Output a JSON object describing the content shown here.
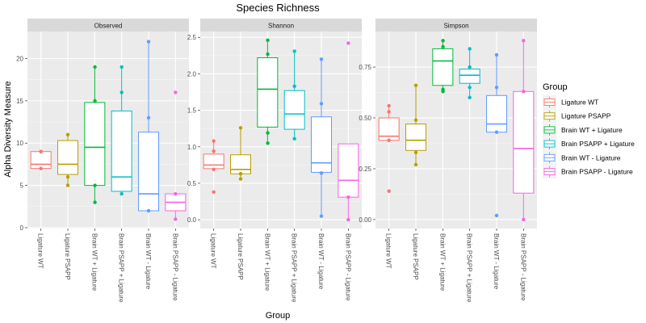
{
  "chart_data": {
    "type": "box",
    "title": "Species Richness",
    "xlabel": "Group",
    "ylabel": "Alpha Diversity Measure",
    "legend": {
      "title": "Group",
      "placement": "right",
      "entries": [
        "Ligature WT",
        "Ligature PSAPP",
        "Brain WT + Ligature",
        "Brain PSAPP + Ligature",
        "Brain WT - Ligature",
        "Brain PSAPP - Ligature"
      ]
    },
    "groups": [
      "Ligature WT",
      "Ligature PSAPP",
      "Brain WT + Ligature",
      "Brain PSAPP + Ligature",
      "Brain WT - Ligature",
      "Brain PSAPP - Ligature"
    ],
    "colors": [
      "#f8766d",
      "#b79f00",
      "#00ba38",
      "#00bfc4",
      "#619cff",
      "#f564e3"
    ],
    "grid": true,
    "panels": [
      {
        "label": "Observed",
        "ylim": [
          -0.1,
          23.2
        ],
        "yticks": [
          0,
          5,
          10,
          15,
          20
        ],
        "ytick_labels": [
          "0",
          "5",
          "10",
          "15",
          "20"
        ],
        "boxes": [
          {
            "min": 7,
            "q1": 7,
            "median": 7.5,
            "q3": 9,
            "max": 9,
            "points": [
              7,
              9,
              9
            ]
          },
          {
            "min": 5,
            "q1": 6.3,
            "median": 7.5,
            "q3": 10.3,
            "max": 11,
            "points": [
              5,
              6,
              11
            ]
          },
          {
            "min": 3,
            "q1": 5,
            "median": 9.5,
            "q3": 14.8,
            "max": 19,
            "points": [
              3,
              5,
              15,
              19
            ]
          },
          {
            "min": 4,
            "q1": 4.3,
            "median": 6,
            "q3": 13.8,
            "max": 19,
            "points": [
              4,
              16,
              19
            ]
          },
          {
            "min": 2,
            "q1": 2,
            "median": 4,
            "q3": 11.3,
            "max": 22,
            "points": [
              2,
              13,
              22
            ]
          },
          {
            "min": 1,
            "q1": 2,
            "median": 3,
            "q3": 4,
            "max": 4,
            "points": [
              1,
              4,
              16
            ]
          }
        ]
      },
      {
        "label": "Shannon",
        "ylim": [
          -0.12,
          2.58
        ],
        "yticks": [
          0,
          0.5,
          1.0,
          1.5,
          2.0,
          2.5
        ],
        "ytick_labels": [
          "0.0",
          "0.5",
          "1.0",
          "1.5",
          "2.0",
          "2.5"
        ],
        "boxes": [
          {
            "min": 0.69,
            "q1": 0.7,
            "median": 0.75,
            "q3": 0.9,
            "max": 1.08,
            "points": [
              0.38,
              0.69,
              0.94,
              1.08
            ]
          },
          {
            "min": 0.56,
            "q1": 0.63,
            "median": 0.69,
            "q3": 0.89,
            "max": 1.26,
            "points": [
              0.56,
              0.63,
              1.26
            ]
          },
          {
            "min": 1.05,
            "q1": 1.27,
            "median": 1.79,
            "q3": 2.22,
            "max": 2.46,
            "points": [
              1.05,
              1.19,
              2.27,
              2.46
            ]
          },
          {
            "min": 1.11,
            "q1": 1.24,
            "median": 1.45,
            "q3": 1.77,
            "max": 2.31,
            "points": [
              1.11,
              1.83,
              2.31
            ]
          },
          {
            "min": 0.05,
            "q1": 0.65,
            "median": 0.78,
            "q3": 1.41,
            "max": 2.2,
            "points": [
              0.05,
              0.64,
              1.59,
              2.2
            ]
          },
          {
            "min": 0.0,
            "q1": 0.31,
            "median": 0.54,
            "q3": 1.04,
            "max": 1.04,
            "points": [
              0.0,
              0.31,
              2.42
            ]
          }
        ]
      },
      {
        "label": "Simpson",
        "ylim": [
          -0.044,
          0.925
        ],
        "yticks": [
          0,
          0.25,
          0.5,
          0.75
        ],
        "ytick_labels": [
          "0.00",
          "0.25",
          "0.50",
          "0.75"
        ],
        "boxes": [
          {
            "min": 0.39,
            "q1": 0.39,
            "median": 0.41,
            "q3": 0.5,
            "max": 0.56,
            "points": [
              0.14,
              0.39,
              0.53,
              0.56
            ]
          },
          {
            "min": 0.27,
            "q1": 0.34,
            "median": 0.39,
            "q3": 0.47,
            "max": 0.66,
            "points": [
              0.27,
              0.33,
              0.49,
              0.66
            ]
          },
          {
            "min": 0.63,
            "q1": 0.66,
            "median": 0.78,
            "q3": 0.84,
            "max": 0.88,
            "points": [
              0.63,
              0.64,
              0.85,
              0.88
            ]
          },
          {
            "min": 0.6,
            "q1": 0.67,
            "median": 0.71,
            "q3": 0.74,
            "max": 0.84,
            "points": [
              0.6,
              0.65,
              0.75,
              0.84
            ]
          },
          {
            "min": 0.43,
            "q1": 0.43,
            "median": 0.47,
            "q3": 0.61,
            "max": 0.81,
            "points": [
              0.02,
              0.43,
              0.65,
              0.81
            ]
          },
          {
            "min": 0.0,
            "q1": 0.13,
            "median": 0.35,
            "q3": 0.63,
            "max": 0.88,
            "points": [
              0.0,
              0.63,
              0.88
            ]
          }
        ]
      }
    ]
  }
}
